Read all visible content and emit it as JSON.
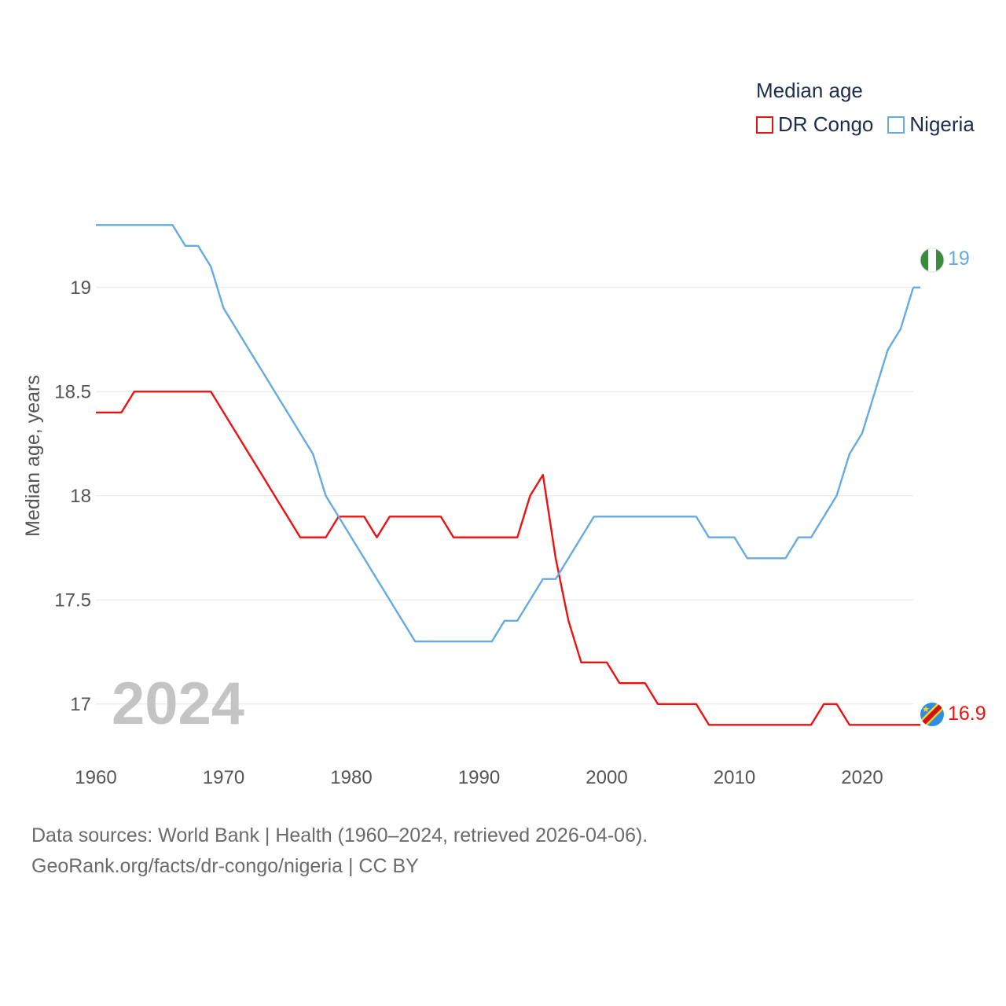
{
  "legend": {
    "title": "Median age",
    "series": [
      {
        "name": "DR Congo",
        "color": "#ee1111"
      },
      {
        "name": "Nigeria",
        "color": "#66aae2"
      }
    ]
  },
  "year_display": "2024",
  "sources": {
    "line1": "Data sources: World Bank | Health (1960–2024, retrieved 2026-04-06).",
    "line2": "GeoRank.org/facts/dr-congo/nigeria | CC BY"
  },
  "chart_data": {
    "type": "line",
    "title": "Median age",
    "xlabel": "",
    "ylabel": "Median age, years",
    "xlim": [
      1960,
      2024
    ],
    "ylim": [
      16.75,
      19.55
    ],
    "x_ticks": [
      1960,
      1970,
      1980,
      1990,
      2000,
      2010,
      2020
    ],
    "y_ticks": [
      17,
      17.5,
      18,
      18.5,
      19
    ],
    "y_tick_labels": [
      "17",
      "17.5",
      "18",
      "18.5",
      "19"
    ],
    "grid": true,
    "legend_position": "top-right",
    "x": [
      1960,
      1961,
      1962,
      1963,
      1964,
      1965,
      1966,
      1967,
      1968,
      1969,
      1970,
      1971,
      1972,
      1973,
      1974,
      1975,
      1976,
      1977,
      1978,
      1979,
      1980,
      1981,
      1982,
      1983,
      1984,
      1985,
      1986,
      1987,
      1988,
      1989,
      1990,
      1991,
      1992,
      1993,
      1994,
      1995,
      1996,
      1997,
      1998,
      1999,
      2000,
      2001,
      2002,
      2003,
      2004,
      2005,
      2006,
      2007,
      2008,
      2009,
      2010,
      2011,
      2012,
      2013,
      2014,
      2015,
      2016,
      2017,
      2018,
      2019,
      2020,
      2021,
      2022,
      2023,
      2024
    ],
    "series": [
      {
        "name": "DR Congo",
        "color": "#ee1111",
        "end_label": "16.9",
        "values": [
          18.4,
          18.4,
          18.4,
          18.5,
          18.5,
          18.5,
          18.5,
          18.5,
          18.5,
          18.5,
          18.4,
          18.3,
          18.2,
          18.1,
          18.0,
          17.9,
          17.8,
          17.8,
          17.8,
          17.9,
          17.9,
          17.9,
          17.8,
          17.9,
          17.9,
          17.9,
          17.9,
          17.9,
          17.8,
          17.8,
          17.8,
          17.8,
          17.8,
          17.8,
          18.0,
          18.1,
          17.7,
          17.4,
          17.2,
          17.2,
          17.2,
          17.1,
          17.1,
          17.1,
          17.0,
          17.0,
          17.0,
          17.0,
          16.9,
          16.9,
          16.9,
          16.9,
          16.9,
          16.9,
          16.9,
          16.9,
          16.9,
          17.0,
          17.0,
          16.9,
          16.9,
          16.9,
          16.9,
          16.9,
          16.9
        ]
      },
      {
        "name": "Nigeria",
        "color": "#66aae2",
        "end_label": "19",
        "values": [
          19.3,
          19.3,
          19.3,
          19.3,
          19.3,
          19.3,
          19.3,
          19.2,
          19.2,
          19.1,
          18.9,
          18.8,
          18.7,
          18.6,
          18.5,
          18.4,
          18.3,
          18.2,
          18.0,
          17.9,
          17.8,
          17.7,
          17.6,
          17.5,
          17.4,
          17.3,
          17.3,
          17.3,
          17.3,
          17.3,
          17.3,
          17.3,
          17.4,
          17.4,
          17.5,
          17.6,
          17.6,
          17.7,
          17.8,
          17.9,
          17.9,
          17.9,
          17.9,
          17.9,
          17.9,
          17.9,
          17.9,
          17.9,
          17.8,
          17.8,
          17.8,
          17.7,
          17.7,
          17.7,
          17.7,
          17.8,
          17.8,
          17.9,
          18.0,
          18.2,
          18.3,
          18.5,
          18.7,
          18.8,
          19.0
        ]
      }
    ]
  }
}
